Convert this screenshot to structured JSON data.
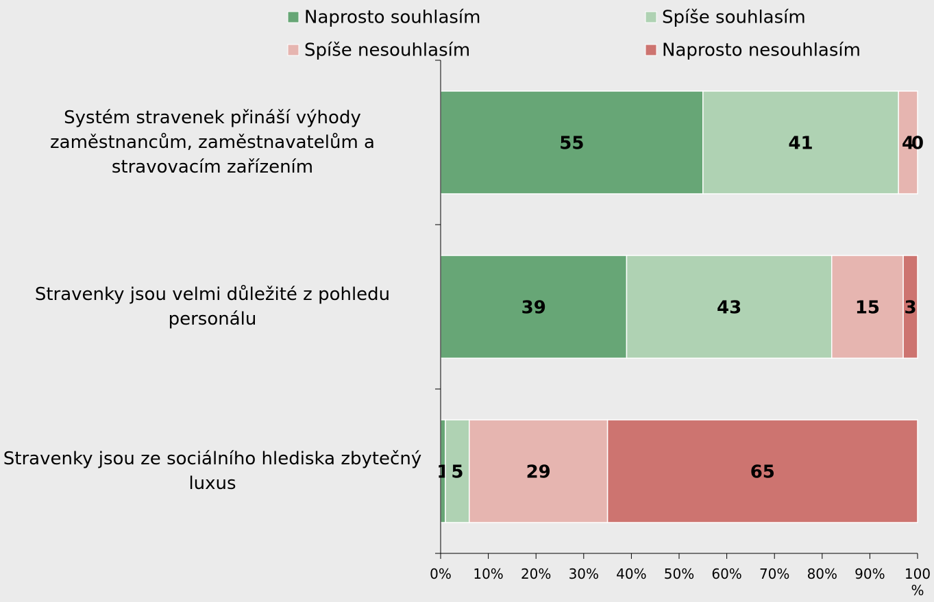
{
  "chart_data": {
    "type": "stacked_barh",
    "categories": [
      "Systém stravenek přináší výhody zaměstnancům, zaměstnavatelům a stravovacím zařízením",
      "Stravenky jsou velmi důležité z pohledu personálu",
      "Stravenky jsou ze sociálního hlediska zbytečný luxus"
    ],
    "series": [
      {
        "name": "Naprosto souhlasím",
        "color": "#67a676",
        "values": [
          55,
          39,
          1
        ]
      },
      {
        "name": "Spíše souhlasím",
        "color": "#afd2b3",
        "values": [
          41,
          43,
          5
        ]
      },
      {
        "name": "Spíše nesouhlasím",
        "color": "#e6b5b0",
        "values": [
          4,
          15,
          29
        ]
      },
      {
        "name": "Naprosto nesouhlasím",
        "color": "#cd7470",
        "values": [
          0,
          3,
          65
        ]
      }
    ],
    "xlim": [
      0,
      100
    ],
    "xticks": [
      {
        "value": 0,
        "label": "0%"
      },
      {
        "value": 10,
        "label": "10%"
      },
      {
        "value": 20,
        "label": "20%"
      },
      {
        "value": 30,
        "label": "30%"
      },
      {
        "value": 40,
        "label": "40%"
      },
      {
        "value": 50,
        "label": "50%"
      },
      {
        "value": 60,
        "label": "60%"
      },
      {
        "value": 70,
        "label": "70%"
      },
      {
        "value": 80,
        "label": "80%"
      },
      {
        "value": 90,
        "label": "90%"
      },
      {
        "value": 100,
        "label": "100 %"
      }
    ],
    "legend": "top",
    "data_labels": true
  }
}
